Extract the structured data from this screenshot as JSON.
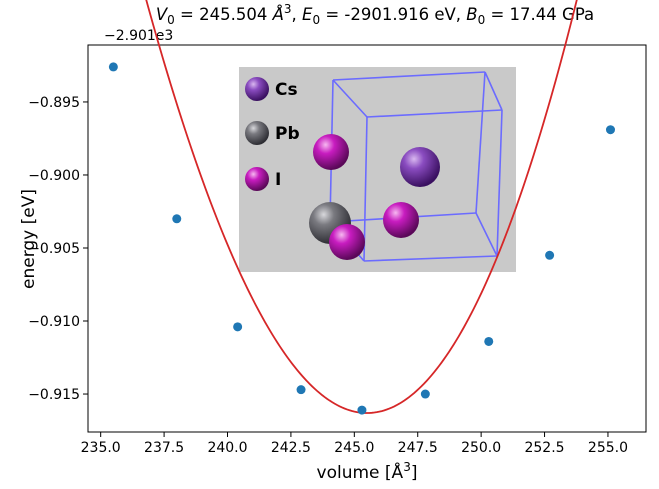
{
  "chart_data": {
    "type": "scatter",
    "title": "V₀ = 245.504 Å³, E₀ = -2901.916 eV, B₀ = 17.44 GPa",
    "title_parts": {
      "v_sym": "V",
      "v_sub": "0",
      "v_eq": " = 245.504 ",
      "v_unit": "Å",
      "v_sup": "3",
      "e_pre": ", ",
      "e_sym": "E",
      "e_sub": "0",
      "e_eq": " = -2901.916 eV, ",
      "b_sym": "B",
      "b_sub": "0",
      "b_eq": " = 17.44 GPa"
    },
    "offset_label": "−2.901e3",
    "xlabel": "volume [Å³]",
    "xlabel_parts": {
      "main": "volume [Å",
      "sup": "3",
      "end": "]"
    },
    "ylabel": "energy [eV]",
    "xlim": [
      234.5,
      256.5
    ],
    "ylim": [
      -0.9176,
      -0.8911
    ],
    "xticks": [
      235.0,
      237.5,
      240.0,
      242.5,
      245.0,
      247.5,
      250.0,
      252.5,
      255.0
    ],
    "xtick_labels": [
      "235.0",
      "237.5",
      "240.0",
      "242.5",
      "245.0",
      "247.5",
      "250.0",
      "252.5",
      "255.0"
    ],
    "yticks": [
      -0.895,
      -0.9,
      -0.905,
      -0.91,
      -0.915
    ],
    "ytick_labels": [
      "−0.895",
      "−0.900",
      "−0.905",
      "−0.910",
      "−0.915"
    ],
    "grid": false,
    "series": [
      {
        "kind": "points",
        "color": "#1f77b4",
        "x": [
          235.5,
          238.0,
          240.4,
          242.9,
          245.3,
          247.8,
          250.3,
          252.7,
          255.1
        ],
        "y": [
          -0.8926,
          -0.903,
          -0.9104,
          -0.9147,
          -0.9161,
          -0.915,
          -0.9114,
          -0.9055,
          -0.8969
        ]
      },
      {
        "kind": "fit-curve",
        "color": "#d62728",
        "vertex": [
          245.504,
          -0.9163
        ],
        "curvature": 0.000394,
        "cubic": 2.4e-06,
        "x_range": [
          235.5,
          255.1
        ]
      }
    ],
    "inset": {
      "background": "#c9c9c9",
      "legend": [
        {
          "label": "Cs",
          "color": "#7b3fa8"
        },
        {
          "label": "Pb",
          "color": "#6e6e74"
        },
        {
          "label": "I",
          "color": "#c01ab8"
        }
      ],
      "cell_color": "#6b6bff"
    }
  }
}
